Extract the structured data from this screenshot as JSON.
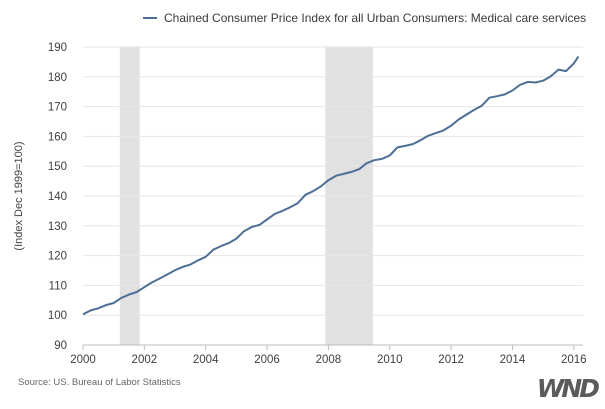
{
  "chart_data": {
    "type": "line",
    "title": "",
    "xlabel": "",
    "ylabel": "(Index Dec 1999=100)",
    "xlim": [
      2000.0,
      2016.3
    ],
    "ylim": [
      90,
      190
    ],
    "x_ticks": [
      2000,
      2002,
      2004,
      2006,
      2008,
      2010,
      2012,
      2014,
      2016
    ],
    "y_ticks": [
      90,
      100,
      110,
      120,
      130,
      140,
      150,
      160,
      170,
      180,
      190
    ],
    "grid": "horizontal",
    "legend_position": "top-center",
    "recessions": [
      {
        "start": 2001.2,
        "end": 2001.85
      },
      {
        "start": 2007.9,
        "end": 2009.45
      }
    ],
    "series": [
      {
        "name": "Chained Consumer Price Index for all Urban Consumers: Medical care services",
        "color": "#4d6f96",
        "points": [
          [
            2000.0,
            100.3
          ],
          [
            2000.25,
            101.6
          ],
          [
            2000.5,
            102.3
          ],
          [
            2000.75,
            103.4
          ],
          [
            2001.0,
            104.1
          ],
          [
            2001.25,
            105.8
          ],
          [
            2001.5,
            106.9
          ],
          [
            2001.75,
            107.8
          ],
          [
            2002.0,
            109.4
          ],
          [
            2002.25,
            111.0
          ],
          [
            2002.5,
            112.3
          ],
          [
            2002.75,
            113.7
          ],
          [
            2003.0,
            115.1
          ],
          [
            2003.25,
            116.2
          ],
          [
            2003.5,
            117.0
          ],
          [
            2003.75,
            118.4
          ],
          [
            2004.0,
            119.6
          ],
          [
            2004.25,
            122.0
          ],
          [
            2004.5,
            123.2
          ],
          [
            2004.75,
            124.2
          ],
          [
            2005.0,
            125.7
          ],
          [
            2005.25,
            128.2
          ],
          [
            2005.5,
            129.6
          ],
          [
            2005.75,
            130.3
          ],
          [
            2006.0,
            132.1
          ],
          [
            2006.25,
            134.0
          ],
          [
            2006.5,
            135.0
          ],
          [
            2006.75,
            136.2
          ],
          [
            2007.0,
            137.6
          ],
          [
            2007.25,
            140.4
          ],
          [
            2007.5,
            141.6
          ],
          [
            2007.75,
            143.2
          ],
          [
            2008.0,
            145.3
          ],
          [
            2008.25,
            146.8
          ],
          [
            2008.5,
            147.4
          ],
          [
            2008.75,
            148.1
          ],
          [
            2009.0,
            149.0
          ],
          [
            2009.25,
            151.0
          ],
          [
            2009.5,
            152.0
          ],
          [
            2009.75,
            152.5
          ],
          [
            2010.0,
            153.6
          ],
          [
            2010.25,
            156.3
          ],
          [
            2010.5,
            156.8
          ],
          [
            2010.75,
            157.4
          ],
          [
            2011.0,
            158.7
          ],
          [
            2011.25,
            160.2
          ],
          [
            2011.5,
            161.1
          ],
          [
            2011.75,
            162.0
          ],
          [
            2012.0,
            163.6
          ],
          [
            2012.25,
            165.7
          ],
          [
            2012.5,
            167.3
          ],
          [
            2012.75,
            168.9
          ],
          [
            2013.0,
            170.3
          ],
          [
            2013.25,
            173.0
          ],
          [
            2013.5,
            173.5
          ],
          [
            2013.75,
            174.1
          ],
          [
            2014.0,
            175.4
          ],
          [
            2014.25,
            177.3
          ],
          [
            2014.5,
            178.3
          ],
          [
            2014.75,
            178.1
          ],
          [
            2015.0,
            178.7
          ],
          [
            2015.25,
            180.2
          ],
          [
            2015.5,
            182.4
          ],
          [
            2015.75,
            181.9
          ],
          [
            2016.0,
            184.5
          ],
          [
            2016.15,
            186.8
          ]
        ]
      }
    ]
  },
  "legend": {
    "label": "Chained Consumer Price Index for all Urban Consumers: Medical care services"
  },
  "footer": {
    "source": "Source: US. Bureau of Labor Statistics",
    "logo_text": "WND"
  }
}
